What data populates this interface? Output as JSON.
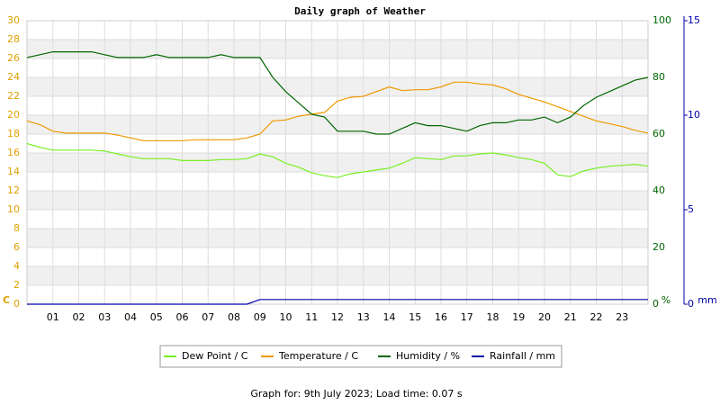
{
  "chart_data": {
    "type": "line",
    "title": "Daily graph of Weather",
    "footer": "Graph for: 9th July 2023; Load time: 0.07 s",
    "y_label": "C",
    "y2_label": "%",
    "y3_label": "mm",
    "x": [
      0,
      0.5,
      1,
      1.5,
      2,
      2.5,
      3,
      3.5,
      4,
      4.5,
      5,
      5.5,
      6,
      6.5,
      7,
      7.5,
      8,
      8.5,
      9,
      9.5,
      10,
      10.5,
      11,
      11.5,
      12,
      12.5,
      13,
      13.5,
      14,
      14.5,
      15,
      15.5,
      16,
      16.5,
      17,
      17.5,
      18,
      18.5,
      19,
      19.5,
      20,
      20.5,
      21,
      21.5,
      22,
      22.5,
      23,
      23.5,
      24
    ],
    "xlim": [
      0,
      24
    ],
    "xticks": [
      {
        "value": 1,
        "label": "01"
      },
      {
        "value": 2,
        "label": "02"
      },
      {
        "value": 3,
        "label": "03"
      },
      {
        "value": 4,
        "label": "04"
      },
      {
        "value": 5,
        "label": "05"
      },
      {
        "value": 6,
        "label": "06"
      },
      {
        "value": 7,
        "label": "07"
      },
      {
        "value": 8,
        "label": "08"
      },
      {
        "value": 9,
        "label": "09"
      },
      10,
      11,
      12,
      13,
      14,
      15,
      16,
      17,
      18,
      19,
      20,
      21,
      22,
      23
    ],
    "ylim": [
      0,
      30
    ],
    "yticks": [
      0,
      2,
      4,
      6,
      8,
      10,
      12,
      14,
      16,
      18,
      20,
      22,
      24,
      26,
      28,
      30
    ],
    "y2lim": [
      0,
      100
    ],
    "y2ticks": [
      0,
      20,
      40,
      60,
      80,
      100
    ],
    "y3lim": [
      0,
      15
    ],
    "y3ticks": [
      0,
      5,
      10,
      15
    ],
    "grid": true,
    "series": [
      {
        "name": "Dew Point / C",
        "color": "#77ee22",
        "axis": "y",
        "values": [
          17.0,
          16.6,
          16.3,
          16.3,
          16.3,
          16.3,
          16.2,
          15.9,
          15.6,
          15.4,
          15.4,
          15.4,
          15.2,
          15.2,
          15.2,
          15.3,
          15.3,
          15.4,
          15.9,
          15.6,
          14.9,
          14.5,
          13.9,
          13.6,
          13.4,
          13.8,
          14.0,
          14.2,
          14.4,
          14.9,
          15.5,
          15.4,
          15.3,
          15.7,
          15.7,
          15.9,
          16.0,
          15.8,
          15.5,
          15.3,
          14.9,
          13.7,
          13.5,
          14.1,
          14.4,
          14.6,
          14.7,
          14.8,
          14.6
        ]
      },
      {
        "name": "Temperature / C",
        "color": "#ee9900",
        "axis": "y",
        "values": [
          19.4,
          19.0,
          18.3,
          18.1,
          18.1,
          18.1,
          18.1,
          17.9,
          17.6,
          17.3,
          17.3,
          17.3,
          17.3,
          17.4,
          17.4,
          17.4,
          17.4,
          17.6,
          18.0,
          19.4,
          19.5,
          19.9,
          20.1,
          20.3,
          21.5,
          21.9,
          22.0,
          22.5,
          23.0,
          22.6,
          22.7,
          22.7,
          23.0,
          23.5,
          23.5,
          23.3,
          23.2,
          22.8,
          22.2,
          21.8,
          21.4,
          20.9,
          20.4,
          19.9,
          19.4,
          19.1,
          18.8,
          18.4,
          18.1
        ]
      },
      {
        "name": "Humidity / %",
        "color": "#006600",
        "axis": "y2",
        "values": [
          87,
          88,
          89,
          89,
          89,
          89,
          88,
          87,
          87,
          87,
          88,
          87,
          87,
          87,
          87,
          88,
          87,
          87,
          87,
          80,
          75,
          71,
          67,
          66,
          61,
          61,
          61,
          60,
          60,
          62,
          64,
          63,
          63,
          62,
          61,
          63,
          64,
          64,
          65,
          65,
          66,
          64,
          66,
          70,
          73,
          75,
          77,
          79,
          80
        ]
      },
      {
        "name": "Rainfall / mm",
        "color": "#0000aa",
        "axis": "y3",
        "values": [
          0,
          0,
          0,
          0,
          0,
          0,
          0,
          0,
          0,
          0,
          0,
          0,
          0,
          0,
          0,
          0,
          0,
          0,
          0.25,
          0.25,
          0.25,
          0.25,
          0.25,
          0.25,
          0.25,
          0.25,
          0.25,
          0.25,
          0.25,
          0.25,
          0.25,
          0.25,
          0.25,
          0.25,
          0.25,
          0.25,
          0.25,
          0.25,
          0.25,
          0.25,
          0.25,
          0.25,
          0.25,
          0.25,
          0.25,
          0.25,
          0.25,
          0.25,
          0.25
        ]
      }
    ]
  }
}
